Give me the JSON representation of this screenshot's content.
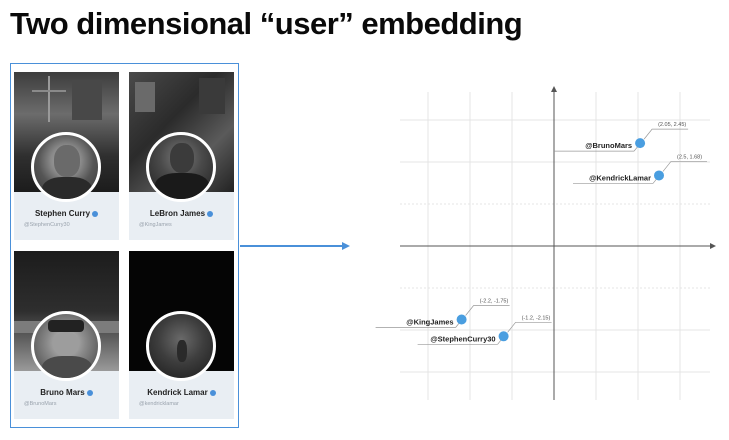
{
  "slide": {
    "title": "Two dimensional “user” embedding"
  },
  "cards": [
    {
      "name": "Stephen Curry",
      "handle": "@StephenCurry30",
      "verified": true
    },
    {
      "name": "LeBron James",
      "handle": "@KingJames",
      "verified": true
    },
    {
      "name": "Bruno Mars",
      "handle": "@BrunoMars",
      "verified": true
    },
    {
      "name": "Kendrick Lamar",
      "handle": "@kendricklamar",
      "verified": true
    }
  ],
  "chart_data": {
    "type": "scatter",
    "title": "",
    "xlabel": "",
    "ylabel": "",
    "xlim": [
      -3,
      3.5
    ],
    "ylim": [
      -3.5,
      3.7
    ],
    "grid": true,
    "points": [
      {
        "label": "@BrunoMars",
        "x": 2.05,
        "y": 2.45,
        "annotation": "(2.05, 2.45)"
      },
      {
        "label": "@KendrickLamar",
        "x": 2.5,
        "y": 1.68,
        "annotation": "(2.5, 1.68)"
      },
      {
        "label": "@KingJames",
        "x": -2.2,
        "y": -1.75,
        "annotation": "(-2.2, -1.75)"
      },
      {
        "label": "@StephenCurry30",
        "x": -1.2,
        "y": -2.15,
        "annotation": "(-1.2, -2.15)"
      }
    ],
    "point_color": "#4a9ee0"
  }
}
